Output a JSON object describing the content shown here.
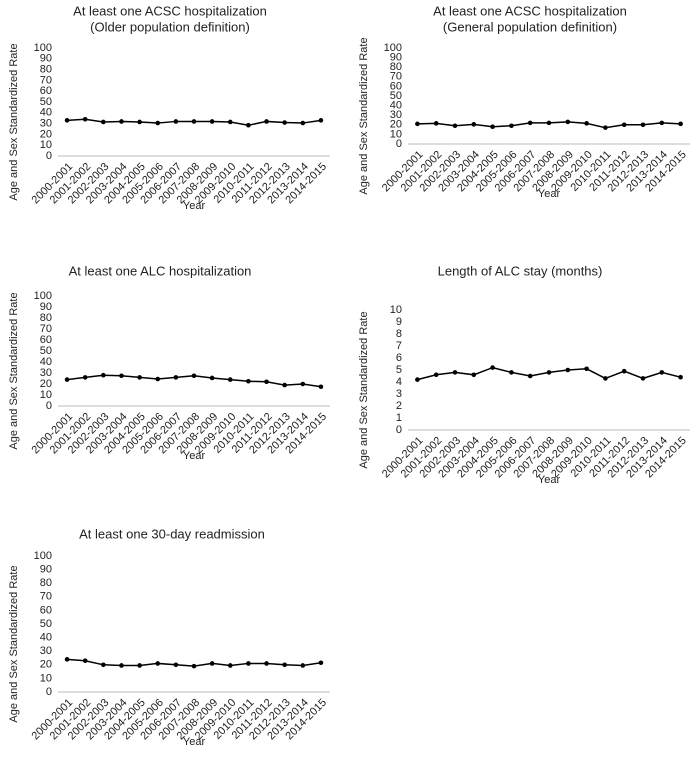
{
  "chart_data": [
    {
      "type": "line",
      "title": "At least one ACSC hospitalization",
      "subtitle": "(Older population definition)",
      "x_label": "Year",
      "y_label": "Age and Sex Standardized Rate",
      "color": "#000000",
      "categories": [
        "2000-2001",
        "2001-2002",
        "2002-2003",
        "2003-2004",
        "2004-2005",
        "2005-2006",
        "2006-2007",
        "2007-2008",
        "2008-2009",
        "2009-2010",
        "2010-2011",
        "2011-2012",
        "2012-2013",
        "2013-2014",
        "2014-2015"
      ],
      "values": [
        33,
        34,
        31.5,
        32,
        31.5,
        30.5,
        32,
        32,
        32,
        31.5,
        28.5,
        32,
        31,
        30.5,
        33
      ],
      "ylim": [
        0,
        100
      ],
      "yticks": [
        0,
        10,
        20,
        30,
        40,
        50,
        60,
        70,
        80,
        90,
        100
      ]
    },
    {
      "type": "line",
      "title": "At least one ACSC hospitalization",
      "subtitle": "(General population definition)",
      "x_label": "Year",
      "y_label": "Age and Sex Standardized Rate",
      "color": "#000000",
      "categories": [
        "2000-2001",
        "2001-2002",
        "2002-2003",
        "2003-2004",
        "2004-2005",
        "2005-2006",
        "2006-2007",
        "2007-2008",
        "2008-2009",
        "2009-2010",
        "2010-2011",
        "2011-2012",
        "2012-2013",
        "2013-2014",
        "2014-2015"
      ],
      "values": [
        21,
        21.5,
        19,
        20.5,
        18,
        19,
        22,
        22,
        23,
        21.5,
        17,
        20,
        20,
        22,
        21
      ],
      "ylim": [
        0,
        100
      ],
      "yticks": [
        0,
        10,
        20,
        30,
        40,
        50,
        60,
        70,
        80,
        90,
        100
      ]
    },
    {
      "type": "line",
      "title": "At least one ALC hospitalization",
      "x_label": "Year",
      "y_label": "Age and Sex Standardized Rate",
      "color": "#000000",
      "categories": [
        "2000-2001",
        "2001-2002",
        "2002-2003",
        "2003-2004",
        "2004-2005",
        "2005-2006",
        "2006-2007",
        "2007-2008",
        "2008-2009",
        "2009-2010",
        "2010-2011",
        "2011-2012",
        "2012-2013",
        "2013-2014",
        "2014-2015"
      ],
      "values": [
        24,
        26,
        28,
        27.5,
        26,
        24.5,
        26,
        27.5,
        25.5,
        24,
        22.5,
        22,
        19,
        20,
        17.5
      ],
      "ylim": [
        0,
        100
      ],
      "yticks": [
        0,
        10,
        20,
        30,
        40,
        50,
        60,
        70,
        80,
        90,
        100
      ]
    },
    {
      "type": "line",
      "title": "Length of ALC stay (months)",
      "x_label": "Year",
      "y_label": "Age and Sex Standardized Rate",
      "color": "#000000",
      "categories": [
        "2000-2001",
        "2001-2002",
        "2002-2003",
        "2003-2004",
        "2004-2005",
        "2005-2006",
        "2006-2007",
        "2007-2008",
        "2008-2009",
        "2009-2010",
        "2010-2011",
        "2011-2012",
        "2012-2013",
        "2013-2014",
        "2014-2015"
      ],
      "values": [
        4.2,
        4.6,
        4.8,
        4.6,
        5.2,
        4.8,
        4.5,
        4.8,
        5.0,
        5.1,
        4.3,
        4.9,
        4.3,
        4.8,
        4.4
      ],
      "ylim": [
        0,
        10
      ],
      "yticks": [
        0,
        1,
        2,
        3,
        4,
        5,
        6,
        7,
        8,
        9,
        10
      ]
    },
    {
      "type": "line",
      "title": "At least one 30-day readmission",
      "x_label": "Year",
      "y_label": "Age and Sex Standardized Rate",
      "color": "#000000",
      "categories": [
        "2000-2001",
        "2001-2002",
        "2002-2003",
        "2003-2004",
        "2004-2005",
        "2005-2006",
        "2006-2007",
        "2007-2008",
        "2008-2009",
        "2009-2010",
        "2010-2011",
        "2011-2012",
        "2012-2013",
        "2013-2014",
        "2014-2015"
      ],
      "values": [
        24,
        23,
        20,
        19.5,
        19.5,
        21,
        20,
        19,
        21,
        19.5,
        21,
        21,
        20,
        19.5,
        21.5
      ],
      "ylim": [
        0,
        100
      ],
      "yticks": [
        0,
        10,
        20,
        30,
        40,
        50,
        60,
        70,
        80,
        90,
        100
      ]
    }
  ]
}
